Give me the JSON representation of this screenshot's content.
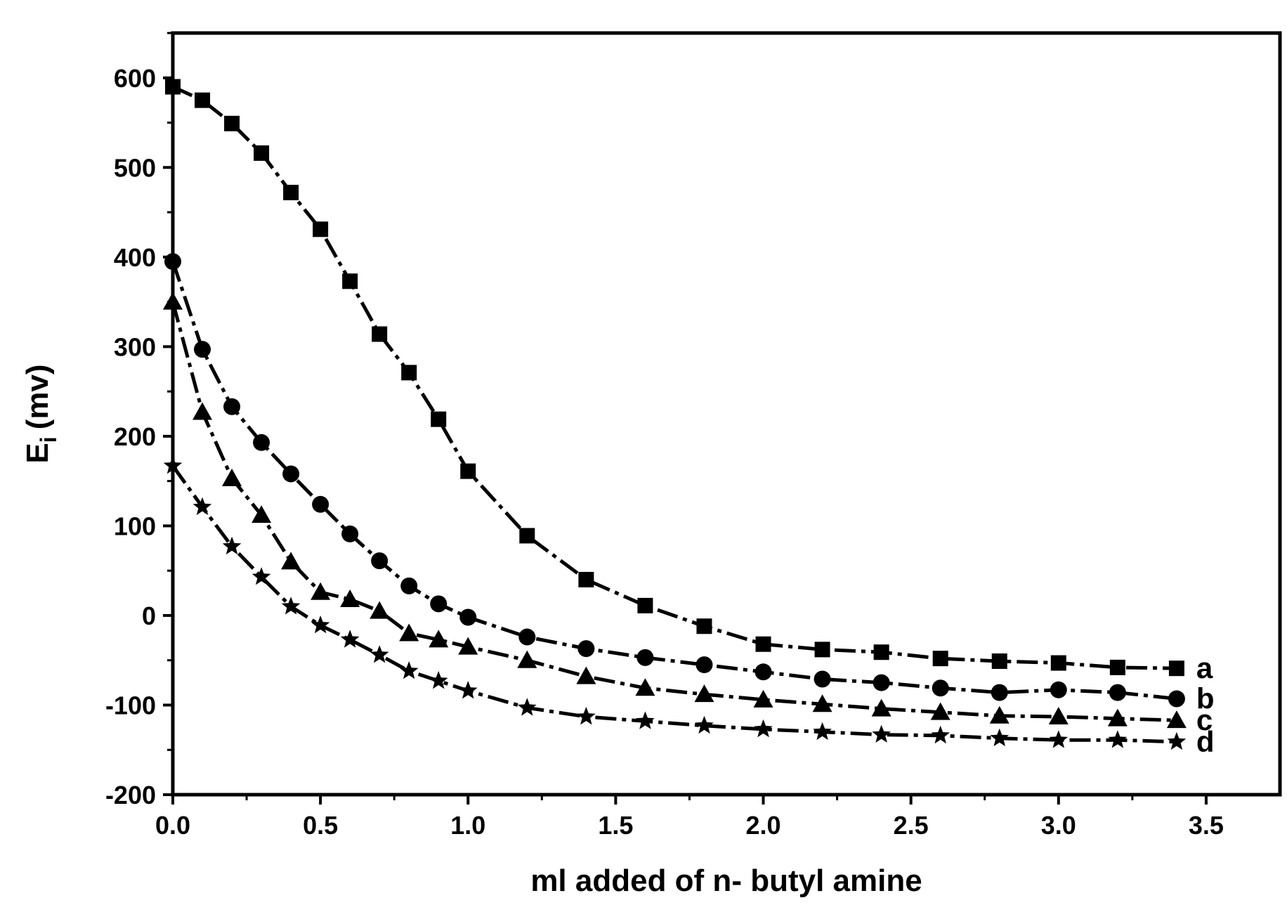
{
  "chart_data": {
    "type": "line",
    "xlabel": "ml added of n- butyl amine",
    "ylabel": {
      "main": "E",
      "sub": "i",
      "unit": "(mv)"
    },
    "xlim": [
      0,
      3.75
    ],
    "ylim": [
      -200,
      650
    ],
    "x_ticks": [
      0.0,
      0.5,
      1.0,
      1.5,
      2.0,
      2.5,
      3.0,
      3.5
    ],
    "x_tick_labels": [
      "0.0",
      "0.5",
      "1.0",
      "1.5",
      "2.0",
      "2.5",
      "3.0",
      "3.5"
    ],
    "y_ticks": [
      -200,
      -100,
      0,
      100,
      200,
      300,
      400,
      500,
      600
    ],
    "y_tick_labels": [
      "-200",
      "-100",
      "0",
      "100",
      "200",
      "300",
      "400",
      "500",
      "600"
    ],
    "grid": false,
    "legend": "none",
    "line_style": "dashed",
    "color": "#000000",
    "x": [
      0.0,
      0.1,
      0.2,
      0.3,
      0.4,
      0.5,
      0.6,
      0.7,
      0.8,
      0.9,
      1.0,
      1.2,
      1.4,
      1.6,
      1.8,
      2.0,
      2.2,
      2.4,
      2.6,
      2.8,
      3.0,
      3.2,
      3.4
    ],
    "series": [
      {
        "label": "a",
        "marker": "square",
        "values": [
          590,
          575,
          549,
          516,
          472,
          431,
          373,
          314,
          271,
          219,
          161,
          89,
          40,
          11,
          -12,
          -32,
          -38,
          -41,
          -48,
          -51,
          -53,
          -58,
          -59
        ]
      },
      {
        "label": "b",
        "marker": "circle",
        "values": [
          395,
          297,
          233,
          193,
          158,
          124,
          91,
          61,
          33,
          13,
          -2,
          -24,
          -37,
          -47,
          -55,
          -63,
          -71,
          -75,
          -81,
          -86,
          -83,
          -86,
          -93
        ]
      },
      {
        "label": "c",
        "marker": "triangle",
        "values": [
          350,
          227,
          153,
          112,
          60,
          26,
          18,
          5,
          -20,
          -27,
          -35,
          -50,
          -68,
          -81,
          -88,
          -94,
          -99,
          -104,
          -108,
          -112,
          -113,
          -115,
          -117
        ]
      },
      {
        "label": "d",
        "marker": "star",
        "values": [
          167,
          121,
          77,
          43,
          10,
          -11,
          -27,
          -44,
          -62,
          -73,
          -84,
          -103,
          -113,
          -118,
          -123,
          -127,
          -130,
          -133,
          -134,
          -137,
          -139,
          -139,
          -141
        ]
      }
    ]
  }
}
